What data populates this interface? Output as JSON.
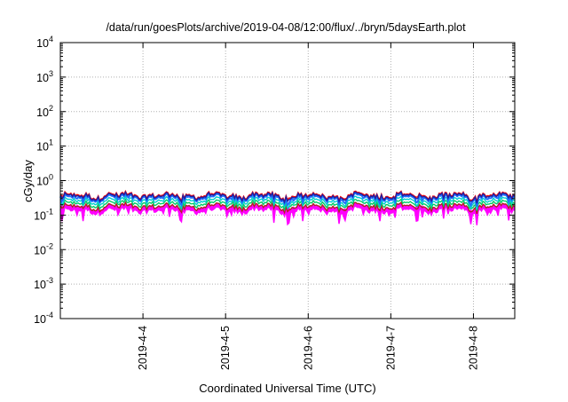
{
  "chart_data": {
    "type": "line",
    "title": "/data/run/goesPlots/archive/2019-04-08/12:00/flux/../bryn/5daysEarth.plot",
    "xlabel": "Coordinated Universal Time (UTC)",
    "ylabel": "cGy/day",
    "y_scale": "log",
    "ylim": [
      0.0001,
      10000
    ],
    "x_start": "2019-04-03 00:00",
    "x_end": "2019-04-08 12:00",
    "y_ticks": [
      {
        "value": 0.0001,
        "base": "10",
        "exp": "-4"
      },
      {
        "value": 0.001,
        "base": "10",
        "exp": "-3"
      },
      {
        "value": 0.01,
        "base": "10",
        "exp": "-2"
      },
      {
        "value": 0.1,
        "base": "10",
        "exp": "-1"
      },
      {
        "value": 1,
        "base": "10",
        "exp": "0"
      },
      {
        "value": 10,
        "base": "10",
        "exp": "1"
      },
      {
        "value": 100,
        "base": "10",
        "exp": "2"
      },
      {
        "value": 1000,
        "base": "10",
        "exp": "3"
      },
      {
        "value": 10000,
        "base": "10",
        "exp": "4"
      }
    ],
    "x_ticks": [
      {
        "value": "2019-04-04 00:00",
        "label": "2019-4-4"
      },
      {
        "value": "2019-04-05 00:00",
        "label": "2019-4-5"
      },
      {
        "value": "2019-04-06 00:00",
        "label": "2019-4-6"
      },
      {
        "value": "2019-04-07 00:00",
        "label": "2019-4-7"
      },
      {
        "value": "2019-04-08 00:00",
        "label": "2019-4-8"
      }
    ],
    "grid": true,
    "legend": "none",
    "series": [
      {
        "color": "#ff00ff",
        "fill": true,
        "base": 0.14,
        "dip": 0.45
      },
      {
        "color": "#b22222",
        "base": 0.18,
        "dip": 0.15
      },
      {
        "color": "#00cc66",
        "base": 0.22,
        "dip": 0.15
      },
      {
        "color": "#00d0d0",
        "base": 0.27,
        "dip": 0.25
      },
      {
        "color": "#1e6fff",
        "base": 0.33,
        "dip": 0.25
      },
      {
        "color": "#ff0000",
        "base": 0.38,
        "dip": 0.12
      },
      {
        "color": "#2020a0",
        "base": 0.36,
        "dip": 0.15
      }
    ]
  }
}
